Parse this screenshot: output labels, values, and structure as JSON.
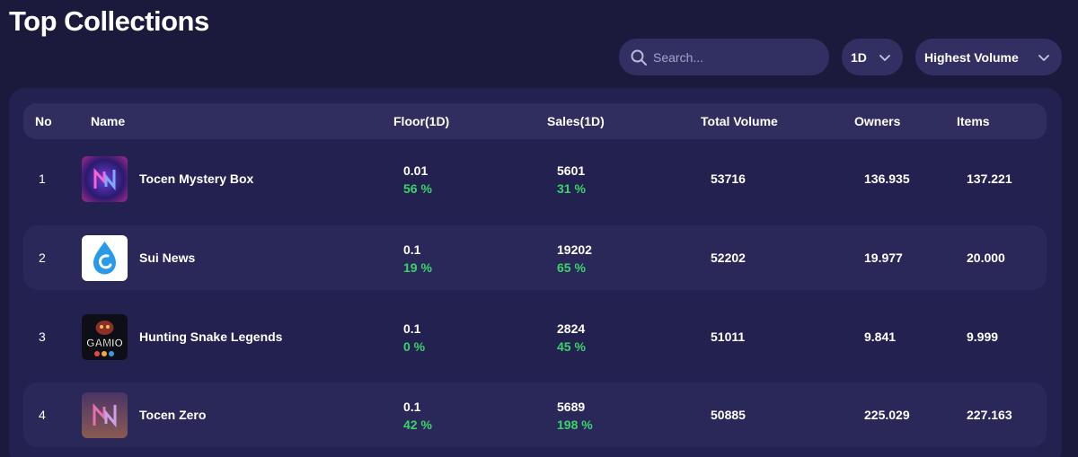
{
  "page": {
    "title": "Top Collections"
  },
  "controls": {
    "search_placeholder": "Search...",
    "period": "1D",
    "sort": "Highest Volume"
  },
  "table": {
    "headers": {
      "no": "No",
      "name": "Name",
      "floor": "Floor(1D)",
      "sales": "Sales(1D)",
      "volume": "Total Volume",
      "owners": "Owners",
      "items": "Items"
    },
    "rows": [
      {
        "no": "1",
        "name": "Tocen Mystery Box",
        "thumb": "tocen-mystery-box-thumbnail",
        "floor": "0.01",
        "floor_change": "56 %",
        "sales": "5601",
        "sales_change": "31 %",
        "volume": "53716",
        "owners": "136.935",
        "items": "137.221"
      },
      {
        "no": "2",
        "name": "Sui News",
        "thumb": "sui-news-thumbnail",
        "floor": "0.1",
        "floor_change": "19 %",
        "sales": "19202",
        "sales_change": "65 %",
        "volume": "52202",
        "owners": "19.977",
        "items": "20.000"
      },
      {
        "no": "3",
        "name": "Hunting Snake Legends",
        "thumb": "gamio-thumbnail",
        "thumb_text": "GAMIO",
        "floor": "0.1",
        "floor_change": "0 %",
        "sales": "2824",
        "sales_change": "45 %",
        "volume": "51011",
        "owners": "9.841",
        "items": "9.999"
      },
      {
        "no": "4",
        "name": "Tocen Zero",
        "thumb": "tocen-zero-thumbnail",
        "floor": "0.1",
        "floor_change": "42 %",
        "sales": "5689",
        "sales_change": "198 %",
        "volume": "50885",
        "owners": "225.029",
        "items": "227.163"
      }
    ]
  },
  "colors": {
    "background": "#1b1a3c",
    "panel": "#232150",
    "alt_row": "#2a2859",
    "control": "#323062",
    "positive": "#3ad46b"
  }
}
